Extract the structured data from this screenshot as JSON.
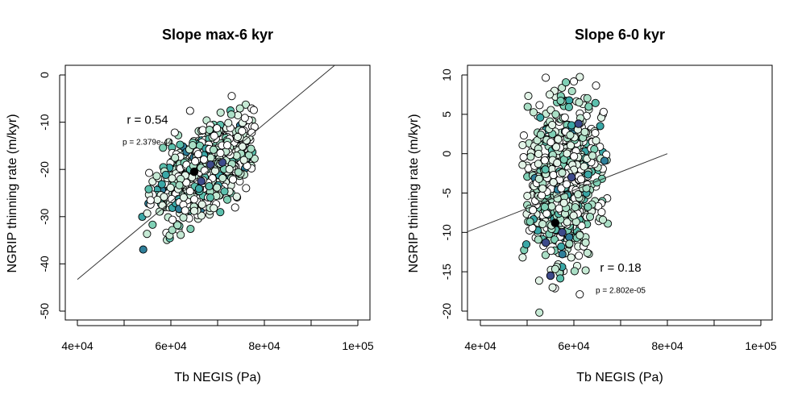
{
  "chart_data": [
    {
      "type": "scatter",
      "title": "Slope max-6 kyr",
      "xlabel": "Tb NEGIS (Pa)",
      "ylabel": "NGRIP thinning rate (m/kyr)",
      "xlim": [
        40000,
        100000
      ],
      "ylim": [
        -50,
        0
      ],
      "x_ticks": [
        40000,
        60000,
        80000,
        100000
      ],
      "x_tick_labels": [
        "4e+04",
        "6e+04",
        "8e+04",
        "1e+05"
      ],
      "x_minor_ticks": [
        50000,
        70000,
        90000
      ],
      "y_ticks": [
        -50,
        -40,
        -30,
        -20,
        -10,
        0
      ],
      "y_tick_labels": [
        "-50",
        "-40",
        "-30",
        "-20",
        "-10",
        "0"
      ],
      "grid": false,
      "regression_line": {
        "x": [
          40000,
          95000
        ],
        "y": [
          -43.3,
          2.0
        ]
      },
      "annotations": {
        "r": "r = 0.54",
        "p": "p = 2.379e-44"
      },
      "annotation_anchor": {
        "r": [
          55000,
          -10.3
        ],
        "p": [
          55000,
          -14.8
        ]
      },
      "cloud": {
        "center": [
          67500,
          -20
        ],
        "sx": 5200,
        "sy": 5.5,
        "rho": 0.55,
        "n": 700,
        "xrange": [
          53000,
          78000
        ],
        "yrange": [
          -45,
          -4
        ]
      },
      "highlight": [
        {
          "x": 65000,
          "y": -20.5,
          "color": "#000000"
        },
        {
          "x": 66500,
          "y": -22.5,
          "color": "#3d4a8a"
        },
        {
          "x": 68500,
          "y": -19,
          "color": "#3d4a8a"
        },
        {
          "x": 71000,
          "y": -18.5,
          "color": "#3d4a8a"
        }
      ],
      "colors": [
        "#ffffff",
        "#e3f4e8",
        "#c6ead5",
        "#aadfc6",
        "#7fd0b5",
        "#5cc0ad",
        "#3aa7a6",
        "#2f7f9a",
        "#3d4a8a",
        "#000000"
      ]
    },
    {
      "type": "scatter",
      "title": "Slope 6-0 kyr",
      "xlabel": "Tb NEGIS (Pa)",
      "ylabel": "NGRIP thinning rate (m/kyr)",
      "xlim": [
        40000,
        100000
      ],
      "ylim": [
        -20,
        10
      ],
      "x_ticks": [
        40000,
        60000,
        80000,
        100000
      ],
      "x_tick_labels": [
        "4e+04",
        "6e+04",
        "8e+04",
        "1e+05"
      ],
      "x_minor_ticks": [
        50000,
        70000,
        90000
      ],
      "y_ticks": [
        -20,
        -15,
        -10,
        -5,
        0,
        5,
        10
      ],
      "y_tick_labels": [
        "-20",
        "-15",
        "-10",
        "-5",
        "0",
        "5",
        "10"
      ],
      "grid": false,
      "regression_line": {
        "x": [
          36000,
          80000
        ],
        "y": [
          -10.2,
          0.0
        ]
      },
      "annotations": {
        "r": "r = 0.18",
        "p": "p = 2.802e-05"
      },
      "annotation_anchor": {
        "r": [
          70000,
          -15
        ],
        "p": [
          70000,
          -17.7
        ]
      },
      "cloud": {
        "center": [
          58000,
          -4
        ],
        "sx": 4000,
        "sy": 5.2,
        "rho": 0.18,
        "n": 750,
        "xrange": [
          49000,
          67500
        ],
        "yrange": [
          -21,
          10
        ]
      },
      "highlight": [
        {
          "x": 56000,
          "y": -8.8,
          "color": "#000000"
        },
        {
          "x": 57500,
          "y": -10,
          "color": "#3d4a8a"
        },
        {
          "x": 55000,
          "y": -15.5,
          "color": "#3d4a8a"
        },
        {
          "x": 59500,
          "y": -3,
          "color": "#3d4a8a"
        },
        {
          "x": 54000,
          "y": -11.3,
          "color": "#3d4a8a"
        },
        {
          "x": 61000,
          "y": 3.8,
          "color": "#3d4a8a"
        }
      ],
      "colors": [
        "#ffffff",
        "#e3f4e8",
        "#c6ead5",
        "#aadfc6",
        "#7fd0b5",
        "#5cc0ad",
        "#3aa7a6",
        "#2f7f9a",
        "#3d4a8a",
        "#000000"
      ]
    }
  ]
}
